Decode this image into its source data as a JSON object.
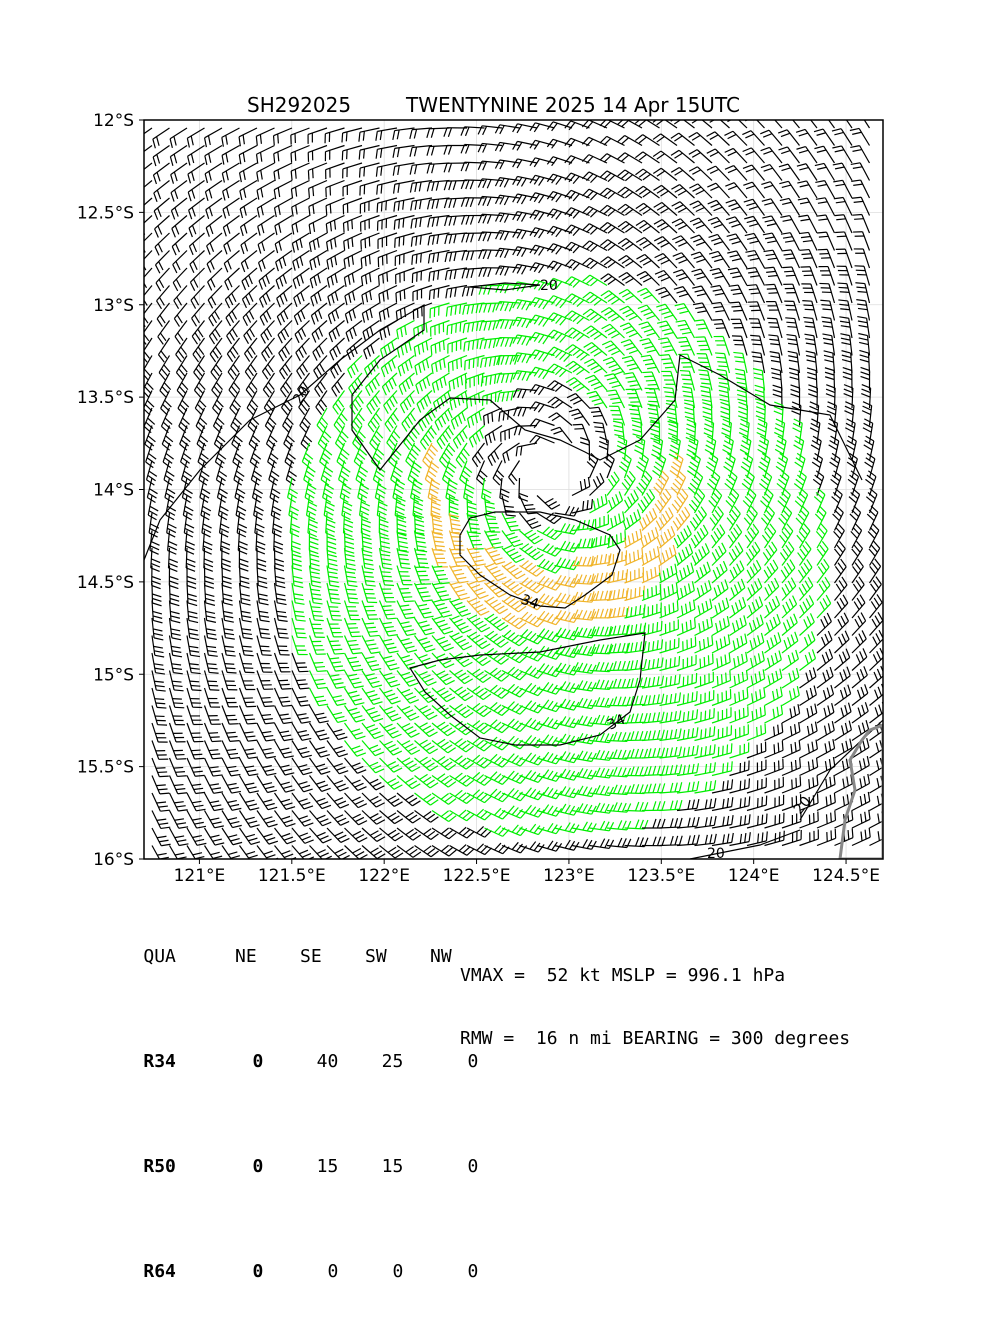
{
  "title": {
    "storm_id": "SH292025",
    "storm_info": "TWENTYNINE 2025 14 Apr 15UTC"
  },
  "map": {
    "lon_range": [
      120.7,
      124.7
    ],
    "lat_range": [
      -16.0,
      -12.0
    ],
    "x_ticks": [
      "121°E",
      "121.5°E",
      "122°E",
      "122.5°E",
      "123°E",
      "123.5°E",
      "124°E",
      "124.5°E"
    ],
    "y_ticks": [
      "12°S",
      "12.5°S",
      "13°S",
      "13.5°S",
      "14°S",
      "14.5°S",
      "15°S",
      "15.5°S",
      "16°S"
    ],
    "center": {
      "lon": 122.9,
      "lat": -13.9
    },
    "barb_colors": {
      "below_34kt": "#000000",
      "34_to_50kt": "#00ee00",
      "above_50kt": "#f0b429"
    },
    "coastline_color": "#888888",
    "contour_labels": [
      "20",
      "20",
      "34",
      "34",
      "20",
      "20"
    ]
  },
  "table": {
    "header": [
      "QUA",
      "NE",
      "SE",
      "SW",
      "NW"
    ],
    "rows": [
      {
        "label": "R34",
        "values": [
          "0",
          "40",
          "25",
          "0"
        ]
      },
      {
        "label": "R50",
        "values": [
          "0",
          "15",
          "15",
          "0"
        ]
      },
      {
        "label": "R64",
        "values": [
          "0",
          "0",
          "0",
          "0"
        ]
      }
    ]
  },
  "summary": {
    "line1": "VMAX =  52 kt MSLP = 996.1 hPa",
    "line2": "RMW =  16 n mi BEARING = 300 degrees"
  }
}
